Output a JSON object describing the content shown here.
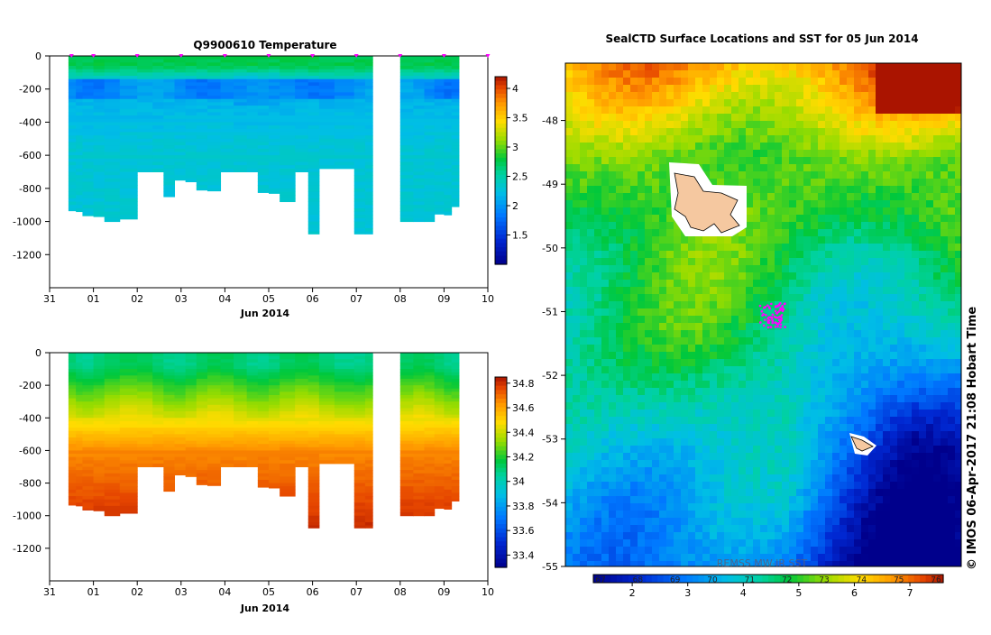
{
  "chart_data": [
    {
      "type": "heatmap",
      "title": "Q9900610  Temperature",
      "xlabel": "Jun 2014",
      "ylabel": "",
      "x_tick_labels": [
        "31",
        "01",
        "02",
        "03",
        "04",
        "05",
        "06",
        "07",
        "08",
        "09",
        "10"
      ],
      "y_tick_labels": [
        "0",
        "-200",
        "-400",
        "-600",
        "-800",
        "-1000",
        "-1200"
      ],
      "xlim_days": [
        31,
        41
      ],
      "ylim": [
        -1400,
        0
      ],
      "y_ticks": [
        0,
        -200,
        -400,
        -600,
        -800,
        -1000,
        -1200
      ],
      "colorbar_labels": [
        "4",
        "3.5",
        "3",
        "2.5",
        "2",
        "1.5"
      ],
      "colorbar_ticks": [
        4,
        3.5,
        3,
        2.5,
        2,
        1.5
      ],
      "colorbar_range": [
        1,
        4.2
      ],
      "profile_marker_days": [
        31.5,
        32.0,
        33.0,
        34.0,
        35.0,
        36.0,
        37.0,
        38.0,
        39.0,
        40.0,
        41.0
      ],
      "marker_color": "#ff00ff",
      "profiles": [
        {
          "day": 31.43,
          "max_depth": -935
        },
        {
          "day": 31.6,
          "max_depth": -940
        },
        {
          "day": 31.75,
          "max_depth": -965
        },
        {
          "day": 32.0,
          "max_depth": -970
        },
        {
          "day": 32.25,
          "max_depth": -1000
        },
        {
          "day": 32.6,
          "max_depth": -985
        },
        {
          "day": 33.0,
          "max_depth": -700
        },
        {
          "day": 33.35,
          "max_depth": -700
        },
        {
          "day": 33.6,
          "max_depth": -850
        },
        {
          "day": 33.85,
          "max_depth": -750
        },
        {
          "day": 34.1,
          "max_depth": -760
        },
        {
          "day": 34.35,
          "max_depth": -810
        },
        {
          "day": 34.6,
          "max_depth": -815
        },
        {
          "day": 34.9,
          "max_depth": -700
        },
        {
          "day": 35.2,
          "max_depth": -700
        },
        {
          "day": 35.5,
          "max_depth": -700
        },
        {
          "day": 35.75,
          "max_depth": -825
        },
        {
          "day": 36.0,
          "max_depth": -830
        },
        {
          "day": 36.25,
          "max_depth": -880
        },
        {
          "day": 36.6,
          "max_depth": -700
        },
        {
          "day": 36.9,
          "max_depth": -1075
        },
        {
          "day": 37.15,
          "max_depth": -680
        },
        {
          "day": 37.5,
          "max_depth": -680
        },
        {
          "day": 37.95,
          "max_depth": -1075
        },
        {
          "day": 38.2,
          "max_depth": -1075
        },
        {
          "day": 39.0,
          "max_depth": -1000
        },
        {
          "day": 39.3,
          "max_depth": -1000
        },
        {
          "day": 39.55,
          "max_depth": -1000
        },
        {
          "day": 39.78,
          "max_depth": -955
        },
        {
          "day": 40.0,
          "max_depth": -960
        },
        {
          "day": 40.17,
          "max_depth": -910
        }
      ]
    },
    {
      "type": "heatmap",
      "title": "",
      "xlabel": "Jun 2014",
      "ylabel": "",
      "x_tick_labels": [
        "31",
        "01",
        "02",
        "03",
        "04",
        "05",
        "06",
        "07",
        "08",
        "09",
        "10"
      ],
      "y_tick_labels": [
        "0",
        "-200",
        "-400",
        "-600",
        "-800",
        "-1000",
        "-1200"
      ],
      "xlim_days": [
        31,
        41
      ],
      "ylim": [
        -1400,
        0
      ],
      "y_ticks": [
        0,
        -200,
        -400,
        -600,
        -800,
        -1000,
        -1200
      ],
      "colorbar_labels": [
        "34.8",
        "34.6",
        "34.4",
        "34.2",
        "34",
        "33.8",
        "33.6",
        "33.4"
      ],
      "colorbar_ticks": [
        34.8,
        34.6,
        34.4,
        34.2,
        34,
        33.8,
        33.6,
        33.4
      ],
      "colorbar_range": [
        33.3,
        34.85
      ]
    },
    {
      "type": "heatmap",
      "title": "SealCTD Surface Locations and SST for 05 Jun 2014",
      "y_tick_labels": [
        "-48",
        "-49",
        "-50",
        "-51",
        "-52",
        "-53",
        "-54",
        "-55"
      ],
      "y_ticks": [
        -48,
        -49,
        -50,
        -51,
        -52,
        -53,
        -54,
        -55
      ],
      "ylim": [
        -55,
        -47.1
      ],
      "seal_locations": [
        [
          0.5,
          0.5
        ]
      ],
      "colorbar_labels": [
        "2",
        "3",
        "4",
        "5",
        "6",
        "7"
      ],
      "colorbar_ticks": [
        2,
        3,
        4,
        5,
        6,
        7
      ],
      "colorbar_range": [
        1.3,
        7.6
      ],
      "colorbar_overlay_labels": [
        "67",
        "68",
        "69",
        "70",
        "71",
        "72",
        "73",
        "74",
        "75",
        "76"
      ],
      "source_label": "REMSS MW-IR SST",
      "land_color": "#f5c8a0"
    }
  ],
  "footer": {
    "credit": "© IMOS 06-Apr-2017 21:08 Hobart Time"
  }
}
